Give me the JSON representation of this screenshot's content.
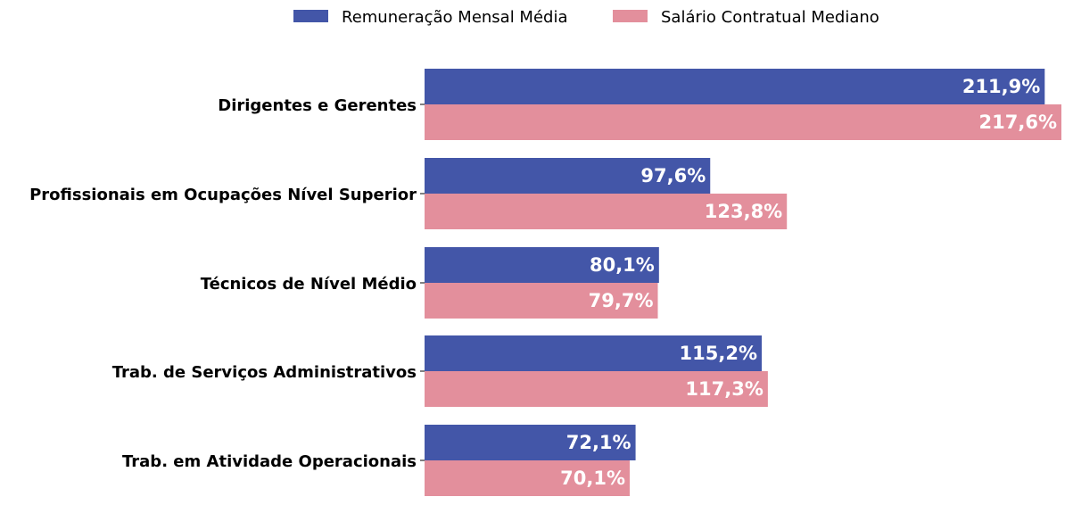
{
  "chart_data": {
    "type": "bar",
    "orientation": "horizontal",
    "categories": [
      "Dirigentes e Gerentes",
      "Profissionais em Ocupações Nível Superior",
      "Técnicos de Nível Médio",
      "Trab. de Serviços Administrativos",
      "Trab. em Atividade Operacionais"
    ],
    "series": [
      {
        "name": "Remuneração Mensal Média",
        "color": "#4356a8",
        "values": [
          211.9,
          97.6,
          80.1,
          115.2,
          72.1
        ],
        "labels": [
          "211,9%",
          "97,6%",
          "80,1%",
          "115,2%",
          "72,1%"
        ]
      },
      {
        "name": "Salário Contratual Mediano",
        "color": "#e38f9c",
        "values": [
          217.6,
          123.8,
          79.7,
          117.3,
          70.1
        ],
        "labels": [
          "217,6%",
          "123,8%",
          "79,7%",
          "117,3%",
          "70,1%"
        ]
      }
    ],
    "xlim": [
      0,
      217.6
    ],
    "grid": false,
    "legend_position": "top-center"
  }
}
